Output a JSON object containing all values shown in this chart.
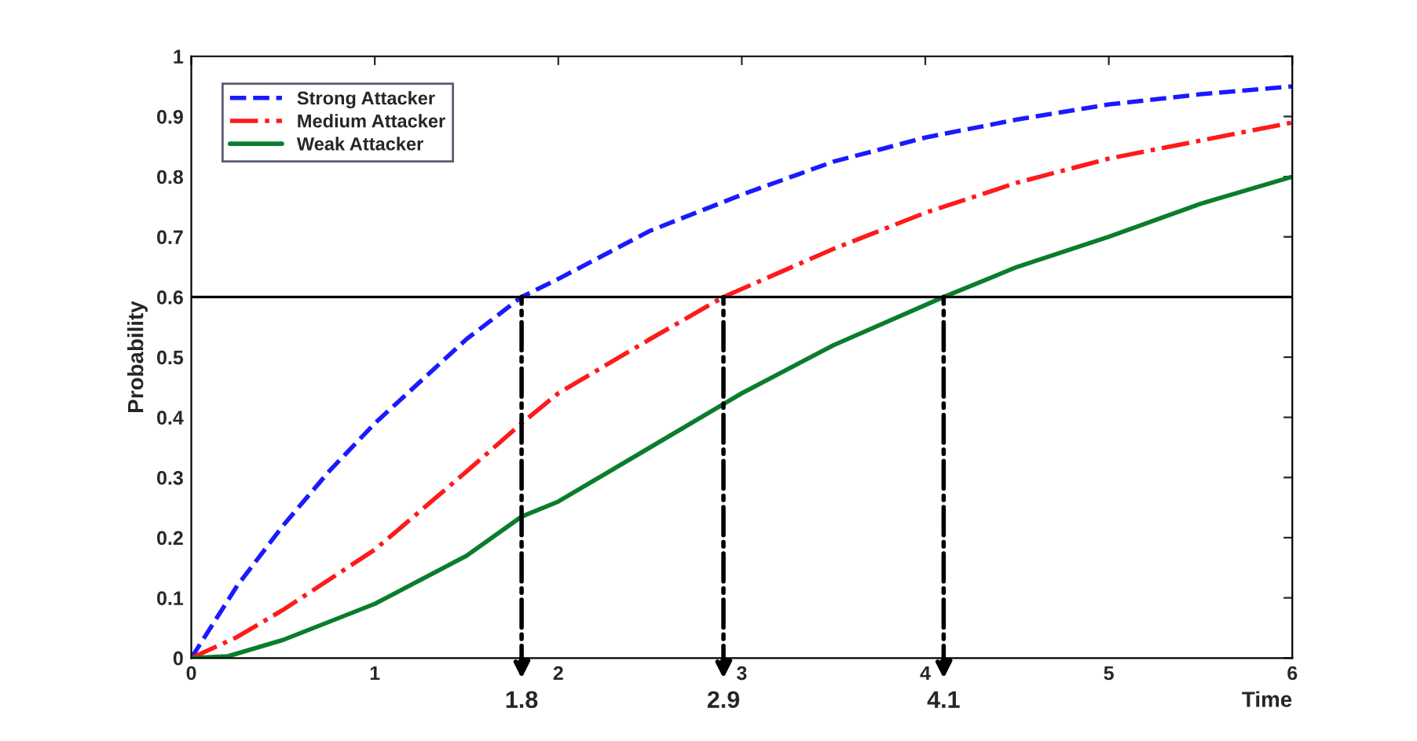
{
  "chart_data": {
    "type": "line",
    "xlabel": "Time",
    "ylabel": "Probability",
    "xlim": [
      0,
      6
    ],
    "xticks": [
      0,
      1,
      2,
      3,
      4,
      5,
      6
    ],
    "ylim": [
      0,
      1
    ],
    "yticks": [
      0,
      0.1,
      0.2,
      0.3,
      0.4,
      0.5,
      0.6,
      0.7,
      0.8,
      0.9,
      1
    ],
    "grid": false,
    "legend": "top left",
    "series": [
      {
        "name": "Strong Attacker",
        "color": "#1a1aff",
        "line_style": "dashed",
        "x": [
          0,
          0.25,
          0.5,
          0.75,
          1,
          1.25,
          1.5,
          1.8,
          2,
          2.5,
          3,
          3.5,
          4,
          4.5,
          5,
          5.5,
          6
        ],
        "values": [
          0,
          0.12,
          0.22,
          0.31,
          0.39,
          0.46,
          0.53,
          0.6,
          0.63,
          0.71,
          0.77,
          0.825,
          0.865,
          0.895,
          0.92,
          0.937,
          0.95
        ]
      },
      {
        "name": "Medium Attacker",
        "color": "#ff1a1a",
        "line_style": "dashdot",
        "x": [
          0,
          0.25,
          0.5,
          1,
          1.5,
          1.8,
          2,
          2.5,
          2.9,
          3.5,
          4,
          4.5,
          5,
          5.5,
          6
        ],
        "values": [
          0,
          0.035,
          0.08,
          0.18,
          0.31,
          0.39,
          0.44,
          0.53,
          0.6,
          0.68,
          0.74,
          0.79,
          0.83,
          0.86,
          0.89
        ]
      },
      {
        "name": "Weak Attacker",
        "color": "#0a7d2c",
        "line_style": "solid",
        "x": [
          0,
          0.2,
          0.5,
          0.75,
          1,
          1.5,
          1.8,
          2,
          2.5,
          3,
          3.5,
          4.1,
          4.5,
          5,
          5.5,
          6
        ],
        "values": [
          0,
          0.003,
          0.03,
          0.06,
          0.09,
          0.17,
          0.235,
          0.26,
          0.35,
          0.44,
          0.52,
          0.6,
          0.65,
          0.7,
          0.755,
          0.8
        ]
      }
    ],
    "ref_lines": [
      {
        "axis": "y",
        "value": 0.6,
        "color": "#000000",
        "line_style": "solid"
      }
    ],
    "annotations": [
      {
        "text": "1.8",
        "x": 1.8,
        "y": 0.6
      },
      {
        "text": "2.9",
        "x": 2.9,
        "y": 0.6
      },
      {
        "text": "4.1",
        "x": 4.1,
        "y": 0.6
      }
    ]
  }
}
